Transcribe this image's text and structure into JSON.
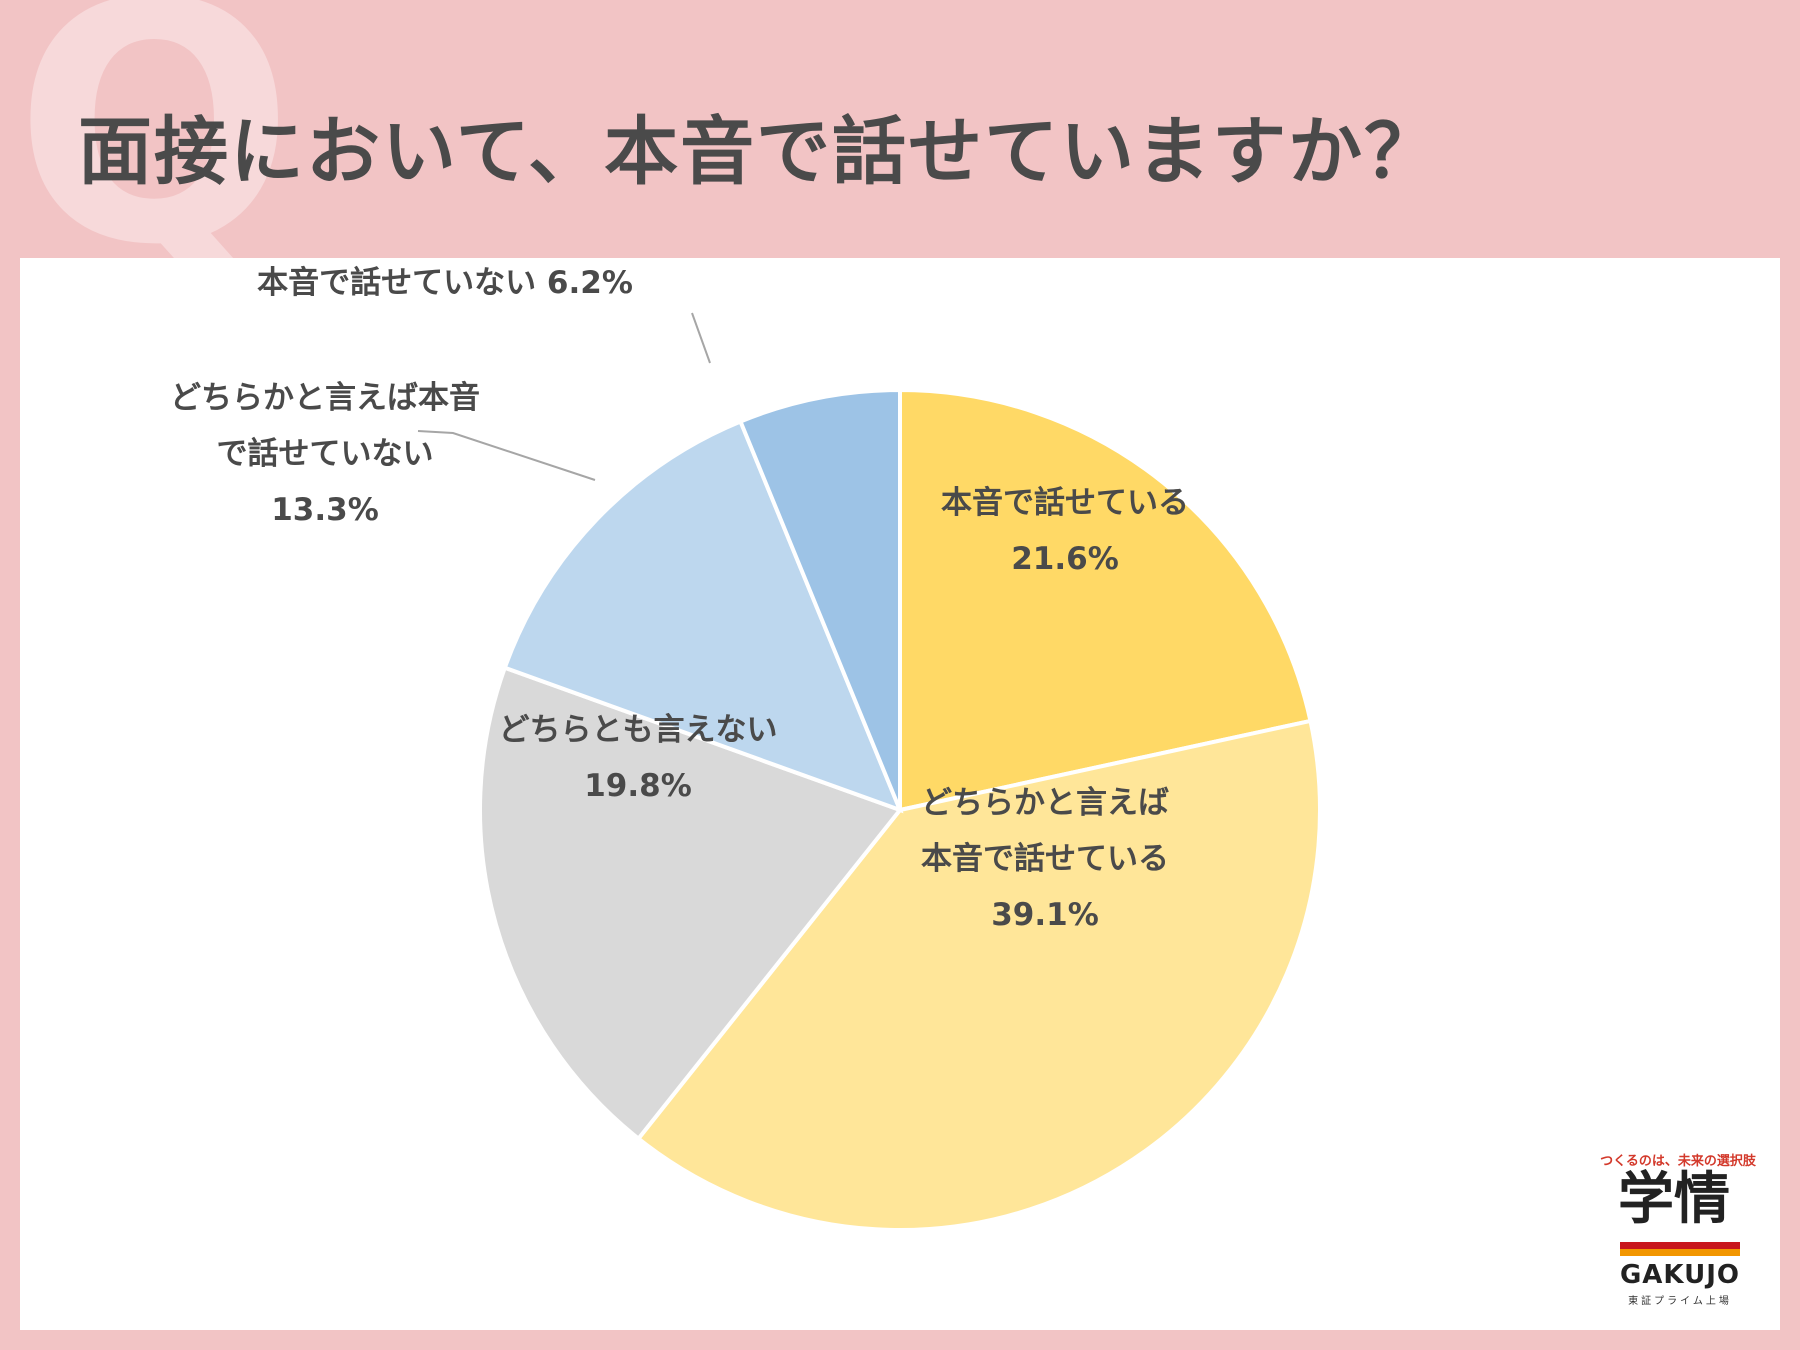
{
  "header": {
    "q_mark": "Q",
    "title": "面接において、本音で話せていますか？"
  },
  "chart_data": {
    "type": "pie",
    "start_angle_deg": 0,
    "direction": "clockwise",
    "slices": [
      {
        "lines": [
          "本音で話せている",
          "21.6%"
        ],
        "value": 21.6,
        "color": "#ffd966"
      },
      {
        "lines": [
          "どちらかと言えば",
          "本音で話せている",
          "39.1%"
        ],
        "value": 39.1,
        "color": "#ffe699"
      },
      {
        "lines": [
          "どちらとも言えない",
          "19.8%"
        ],
        "value": 19.8,
        "color": "#d9d9d9"
      },
      {
        "lines": [
          "どちらかと言えば本音",
          "で話せていない",
          "13.3%"
        ],
        "value": 13.3,
        "color": "#bdd7ee"
      },
      {
        "lines": [
          "本音で話せていない 6.2%"
        ],
        "value": 6.2,
        "color": "#9dc3e6"
      }
    ]
  },
  "logo": {
    "tagline": "つくるのは、未来の選択肢",
    "kanji": "学情",
    "brand": "GAKUJO",
    "sub": "東証プライム上場"
  }
}
